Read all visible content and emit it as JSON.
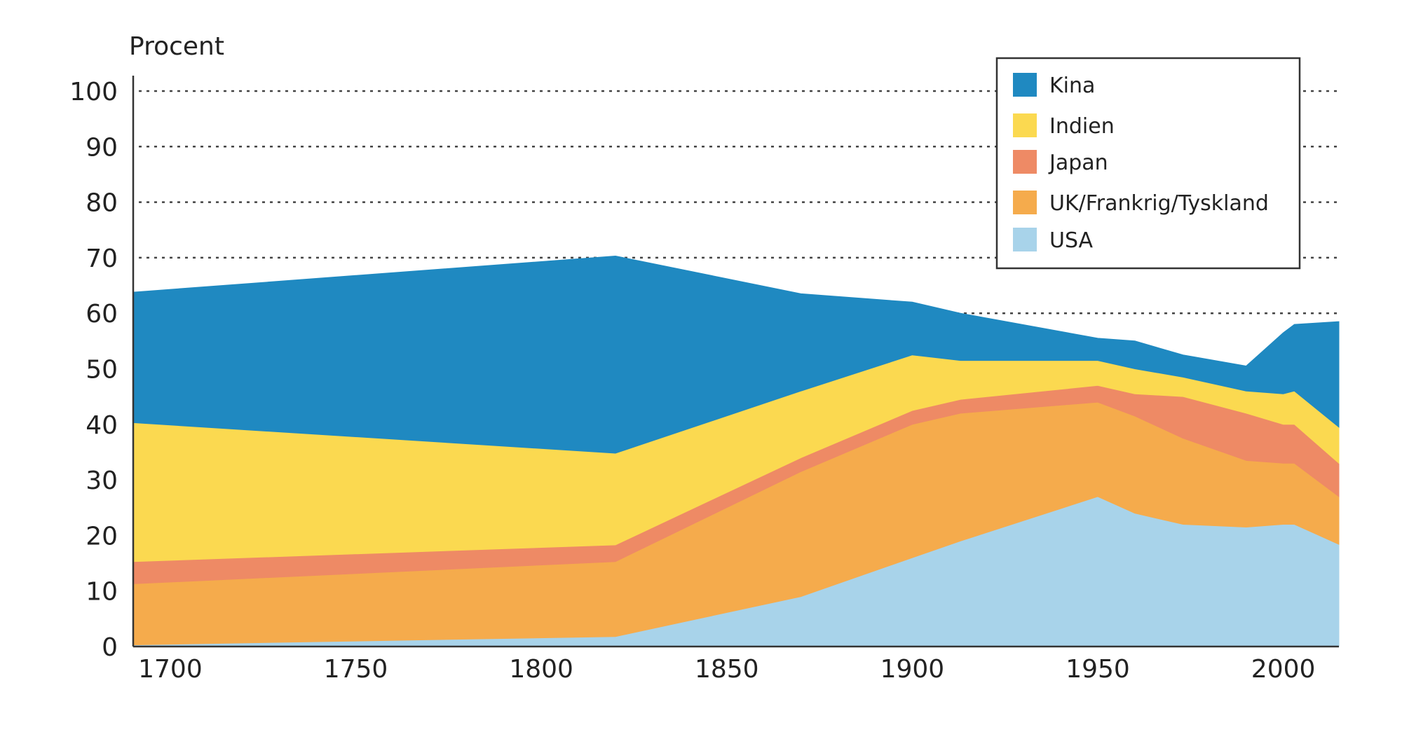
{
  "chart_data": {
    "type": "area",
    "stacked": true,
    "ylabel": "Procent",
    "xlim": [
      1690,
      2015
    ],
    "ylim": [
      0,
      100
    ],
    "x_ticks": [
      1700,
      1750,
      1800,
      1850,
      1900,
      1950,
      2000
    ],
    "y_ticks": [
      0,
      10,
      20,
      30,
      40,
      50,
      60,
      70,
      80,
      90,
      100
    ],
    "grid": "horizontal-dotted",
    "legend_position": "top-right",
    "x": [
      1690,
      1820,
      1870,
      1900,
      1913,
      1950,
      1960,
      1973,
      1990,
      2000,
      2003,
      2015
    ],
    "series": [
      {
        "name": "USA",
        "color": "#a8d3ea",
        "values": [
          0.3,
          1.8,
          9,
          16,
          19,
          27,
          24,
          22,
          21.5,
          22,
          22,
          18.4
        ]
      },
      {
        "name": "UK/Frankrig/Tyskland",
        "color": "#f5ab4c",
        "values": [
          11,
          13.5,
          22.5,
          24,
          23,
          17,
          17.5,
          15.5,
          12,
          11,
          11,
          8.6
        ]
      },
      {
        "name": "Japan",
        "color": "#ee8a65",
        "values": [
          4,
          3,
          2.5,
          2.5,
          2.5,
          3,
          4,
          7.5,
          8.5,
          7,
          7,
          6
        ]
      },
      {
        "name": "Indien",
        "color": "#fbd950",
        "values": [
          25,
          16.5,
          12,
          10,
          7,
          4.5,
          4.5,
          3.5,
          4,
          5.5,
          6,
          6.5
        ]
      },
      {
        "name": "Kina",
        "color": "#1f89c1",
        "values": [
          23.5,
          35.5,
          17.5,
          9.5,
          8.5,
          4,
          5,
          4,
          4.5,
          11,
          12,
          19
        ]
      }
    ],
    "legend_order": [
      "Kina",
      "Indien",
      "Japan",
      "UK/Frankrig/Tyskland",
      "USA"
    ]
  }
}
